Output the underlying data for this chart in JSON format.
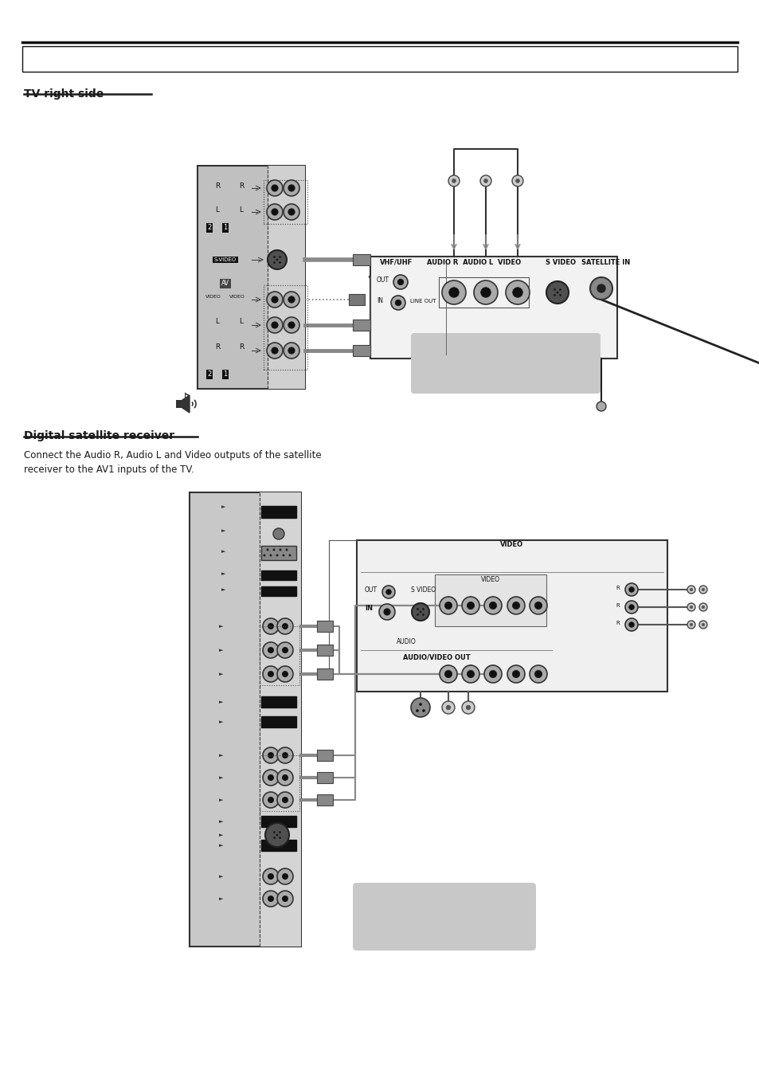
{
  "page_bg": "#ffffff",
  "section1_title": "TV right side",
  "section2_title": "Digital satellite receiver",
  "body_text1": "Connect the Audio R, Audio L and Video outputs of the satellite",
  "body_text2": "receiver to the AV1 inputs of the TV.",
  "gray_box_color": "#c8c8c8",
  "tv_panel_color": "#d4d4d4",
  "tv_panel_dark": "#a0a0a0",
  "sat_box_color": "#f0f0f0",
  "connector_gray": "#909090",
  "cable_dark": "#303030",
  "plug_gray": "#808080",
  "arrow_gray": "#888888",
  "text_dark": "#1a1a1a",
  "black": "#101010",
  "white": "#ffffff"
}
